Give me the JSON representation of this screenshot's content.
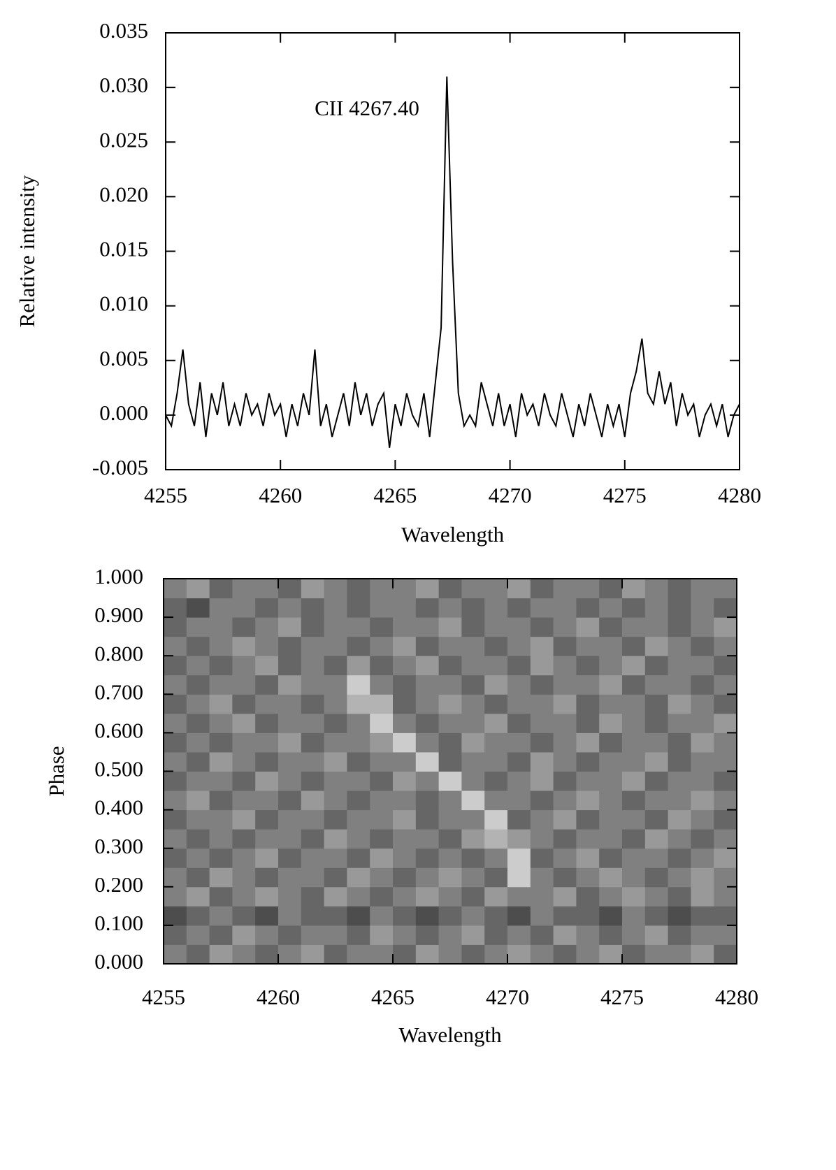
{
  "chart_data": [
    {
      "type": "line",
      "xlabel": "Wavelength",
      "ylabel": "Relative intensity",
      "annotations": [
        "CII 4267.40"
      ],
      "color": "#000000",
      "x": [
        4255,
        4255.25,
        4255.5,
        4255.75,
        4256,
        4256.25,
        4256.5,
        4256.75,
        4257,
        4257.25,
        4257.5,
        4257.75,
        4258,
        4258.25,
        4258.5,
        4258.75,
        4259,
        4259.25,
        4259.5,
        4259.75,
        4260,
        4260.25,
        4260.5,
        4260.75,
        4261,
        4261.25,
        4261.5,
        4261.75,
        4262,
        4262.25,
        4262.5,
        4262.75,
        4263,
        4263.25,
        4263.5,
        4263.75,
        4264,
        4264.25,
        4264.5,
        4264.75,
        4265,
        4265.25,
        4265.5,
        4265.75,
        4266,
        4266.25,
        4266.5,
        4266.75,
        4267,
        4267.25,
        4267.5,
        4267.75,
        4268,
        4268.25,
        4268.5,
        4268.75,
        4269,
        4269.25,
        4269.5,
        4269.75,
        4270,
        4270.25,
        4270.5,
        4270.75,
        4271,
        4271.25,
        4271.5,
        4271.75,
        4272,
        4272.25,
        4272.5,
        4272.75,
        4273,
        4273.25,
        4273.5,
        4273.75,
        4274,
        4274.25,
        4274.5,
        4274.75,
        4275,
        4275.25,
        4275.5,
        4275.75,
        4276,
        4276.25,
        4276.5,
        4276.75,
        4277,
        4277.25,
        4277.5,
        4277.75,
        4278,
        4278.25,
        4278.5,
        4278.75,
        4279,
        4279.25,
        4279.5,
        4279.75,
        4280
      ],
      "values": [
        0.0,
        -0.001,
        0.002,
        0.006,
        0.001,
        -0.001,
        0.003,
        -0.002,
        0.002,
        0.0,
        0.003,
        -0.001,
        0.001,
        -0.001,
        0.002,
        0.0,
        0.001,
        -0.001,
        0.002,
        0.0,
        0.001,
        -0.002,
        0.001,
        -0.001,
        0.002,
        0.0,
        0.006,
        -0.001,
        0.001,
        -0.002,
        0.0,
        0.002,
        -0.001,
        0.003,
        0.0,
        0.002,
        -0.001,
        0.001,
        0.002,
        -0.003,
        0.001,
        -0.001,
        0.002,
        0.0,
        -0.001,
        0.002,
        -0.002,
        0.003,
        0.008,
        0.031,
        0.014,
        0.002,
        -0.001,
        0.0,
        -0.001,
        0.003,
        0.001,
        -0.001,
        0.002,
        -0.001,
        0.001,
        -0.002,
        0.002,
        0.0,
        0.001,
        -0.001,
        0.002,
        0.0,
        -0.001,
        0.002,
        0.0,
        -0.002,
        0.001,
        -0.001,
        0.002,
        0.0,
        -0.002,
        0.001,
        -0.001,
        0.001,
        -0.002,
        0.002,
        0.004,
        0.007,
        0.002,
        0.001,
        0.004,
        0.001,
        0.003,
        -0.001,
        0.002,
        0.0,
        0.001,
        -0.002,
        0.0,
        0.001,
        -0.001,
        0.001,
        -0.002,
        0.0,
        0.001
      ],
      "xlim": [
        4255,
        4280
      ],
      "xticks": [
        4255,
        4260,
        4265,
        4270,
        4275,
        4280
      ],
      "ylim": [
        -0.005,
        0.035
      ],
      "yticks": [
        {
          "value": -0.005,
          "label": "-0.005"
        },
        {
          "value": 0,
          "label": "0.000"
        },
        {
          "value": 0.005,
          "label": "0.005"
        },
        {
          "value": 0.01,
          "label": "0.010"
        },
        {
          "value": 0.015,
          "label": "0.015"
        },
        {
          "value": 0.02,
          "label": "0.020"
        },
        {
          "value": 0.025,
          "label": "0.025"
        },
        {
          "value": 0.03,
          "label": "0.030"
        },
        {
          "value": 0.035,
          "label": "0.035"
        }
      ]
    },
    {
      "type": "heatmap",
      "xlabel": "Wavelength",
      "ylabel": "Phase",
      "x": [
        4255.5,
        4256.5,
        4257.5,
        4258.5,
        4259.5,
        4260.5,
        4261.5,
        4262.5,
        4263.5,
        4264.5,
        4265.5,
        4266.5,
        4267.5,
        4268.5,
        4269.5,
        4270.5,
        4271.5,
        4272.5,
        4273.5,
        4274.5,
        4275.5,
        4276.5,
        4277.5,
        4278.5,
        4279.5
      ],
      "y": [
        0.025,
        0.075,
        0.125,
        0.175,
        0.225,
        0.275,
        0.325,
        0.375,
        0.425,
        0.475,
        0.525,
        0.575,
        0.625,
        0.675,
        0.725,
        0.775,
        0.825,
        0.875,
        0.925,
        0.975
      ],
      "z": [
        [
          0.5,
          0.4,
          0.6,
          0.5,
          0.4,
          0.5,
          0.6,
          0.4,
          0.5,
          0.5,
          0.4,
          0.6,
          0.5,
          0.4,
          0.5,
          0.6,
          0.5,
          0.4,
          0.5,
          0.6,
          0.4,
          0.5,
          0.5,
          0.6,
          0.4
        ],
        [
          0.4,
          0.5,
          0.4,
          0.6,
          0.5,
          0.4,
          0.5,
          0.5,
          0.4,
          0.6,
          0.5,
          0.4,
          0.5,
          0.6,
          0.4,
          0.5,
          0.4,
          0.6,
          0.5,
          0.4,
          0.5,
          0.6,
          0.4,
          0.5,
          0.5
        ],
        [
          0.3,
          0.4,
          0.5,
          0.4,
          0.3,
          0.5,
          0.4,
          0.4,
          0.3,
          0.5,
          0.4,
          0.3,
          0.4,
          0.5,
          0.4,
          0.3,
          0.5,
          0.4,
          0.4,
          0.3,
          0.5,
          0.4,
          0.3,
          0.4,
          0.4
        ],
        [
          0.5,
          0.6,
          0.4,
          0.5,
          0.6,
          0.5,
          0.4,
          0.6,
          0.5,
          0.4,
          0.5,
          0.6,
          0.5,
          0.4,
          0.6,
          0.5,
          0.5,
          0.6,
          0.4,
          0.5,
          0.6,
          0.5,
          0.4,
          0.6,
          0.5
        ],
        [
          0.5,
          0.4,
          0.6,
          0.5,
          0.4,
          0.5,
          0.5,
          0.4,
          0.6,
          0.5,
          0.4,
          0.5,
          0.6,
          0.5,
          0.4,
          0.8,
          0.5,
          0.4,
          0.5,
          0.6,
          0.5,
          0.4,
          0.5,
          0.6,
          0.5
        ],
        [
          0.4,
          0.5,
          0.4,
          0.5,
          0.6,
          0.4,
          0.5,
          0.5,
          0.4,
          0.6,
          0.5,
          0.4,
          0.5,
          0.4,
          0.5,
          0.8,
          0.4,
          0.5,
          0.6,
          0.4,
          0.5,
          0.5,
          0.4,
          0.5,
          0.6
        ],
        [
          0.5,
          0.4,
          0.5,
          0.4,
          0.5,
          0.5,
          0.4,
          0.6,
          0.5,
          0.4,
          0.5,
          0.5,
          0.4,
          0.6,
          0.7,
          0.6,
          0.5,
          0.4,
          0.5,
          0.5,
          0.4,
          0.6,
          0.5,
          0.4,
          0.5
        ],
        [
          0.4,
          0.5,
          0.5,
          0.6,
          0.4,
          0.5,
          0.5,
          0.4,
          0.5,
          0.5,
          0.6,
          0.4,
          0.5,
          0.5,
          0.8,
          0.4,
          0.5,
          0.6,
          0.4,
          0.5,
          0.5,
          0.4,
          0.6,
          0.5,
          0.4
        ],
        [
          0.5,
          0.6,
          0.4,
          0.5,
          0.5,
          0.4,
          0.6,
          0.5,
          0.4,
          0.5,
          0.5,
          0.4,
          0.5,
          0.8,
          0.5,
          0.5,
          0.4,
          0.5,
          0.6,
          0.5,
          0.4,
          0.5,
          0.5,
          0.6,
          0.5
        ],
        [
          0.4,
          0.5,
          0.5,
          0.4,
          0.6,
          0.5,
          0.4,
          0.5,
          0.5,
          0.4,
          0.6,
          0.5,
          0.8,
          0.5,
          0.4,
          0.5,
          0.6,
          0.4,
          0.5,
          0.5,
          0.6,
          0.4,
          0.5,
          0.5,
          0.4
        ],
        [
          0.5,
          0.4,
          0.6,
          0.5,
          0.4,
          0.5,
          0.5,
          0.6,
          0.4,
          0.5,
          0.5,
          0.8,
          0.4,
          0.5,
          0.5,
          0.4,
          0.6,
          0.5,
          0.4,
          0.5,
          0.5,
          0.6,
          0.4,
          0.5,
          0.5
        ],
        [
          0.4,
          0.5,
          0.4,
          0.5,
          0.5,
          0.6,
          0.4,
          0.5,
          0.5,
          0.6,
          0.8,
          0.5,
          0.4,
          0.6,
          0.5,
          0.5,
          0.4,
          0.5,
          0.6,
          0.4,
          0.5,
          0.5,
          0.4,
          0.6,
          0.5
        ],
        [
          0.5,
          0.4,
          0.5,
          0.6,
          0.4,
          0.5,
          0.5,
          0.4,
          0.5,
          0.8,
          0.5,
          0.4,
          0.5,
          0.5,
          0.6,
          0.4,
          0.5,
          0.5,
          0.4,
          0.6,
          0.5,
          0.4,
          0.5,
          0.5,
          0.6
        ],
        [
          0.4,
          0.5,
          0.6,
          0.4,
          0.5,
          0.5,
          0.4,
          0.5,
          0.7,
          0.7,
          0.4,
          0.5,
          0.6,
          0.5,
          0.4,
          0.5,
          0.5,
          0.6,
          0.4,
          0.5,
          0.5,
          0.4,
          0.6,
          0.5,
          0.4
        ],
        [
          0.5,
          0.4,
          0.5,
          0.5,
          0.4,
          0.6,
          0.5,
          0.5,
          0.8,
          0.5,
          0.4,
          0.5,
          0.5,
          0.4,
          0.6,
          0.5,
          0.4,
          0.5,
          0.5,
          0.6,
          0.4,
          0.5,
          0.5,
          0.4,
          0.5
        ],
        [
          0.4,
          0.5,
          0.4,
          0.5,
          0.6,
          0.4,
          0.5,
          0.4,
          0.6,
          0.4,
          0.5,
          0.6,
          0.4,
          0.5,
          0.5,
          0.4,
          0.6,
          0.5,
          0.4,
          0.5,
          0.6,
          0.4,
          0.5,
          0.5,
          0.4
        ],
        [
          0.5,
          0.4,
          0.5,
          0.6,
          0.5,
          0.4,
          0.5,
          0.5,
          0.4,
          0.5,
          0.6,
          0.4,
          0.5,
          0.5,
          0.4,
          0.5,
          0.6,
          0.4,
          0.5,
          0.5,
          0.4,
          0.6,
          0.5,
          0.4,
          0.5
        ],
        [
          0.4,
          0.5,
          0.5,
          0.4,
          0.5,
          0.6,
          0.4,
          0.5,
          0.5,
          0.4,
          0.5,
          0.5,
          0.6,
          0.4,
          0.5,
          0.5,
          0.4,
          0.5,
          0.6,
          0.4,
          0.5,
          0.5,
          0.4,
          0.5,
          0.6
        ],
        [
          0.4,
          0.3,
          0.5,
          0.5,
          0.4,
          0.5,
          0.4,
          0.5,
          0.4,
          0.5,
          0.5,
          0.4,
          0.5,
          0.4,
          0.5,
          0.4,
          0.5,
          0.5,
          0.4,
          0.5,
          0.4,
          0.5,
          0.4,
          0.5,
          0.4
        ],
        [
          0.5,
          0.6,
          0.4,
          0.5,
          0.5,
          0.4,
          0.6,
          0.5,
          0.4,
          0.5,
          0.5,
          0.6,
          0.4,
          0.5,
          0.5,
          0.6,
          0.4,
          0.5,
          0.5,
          0.4,
          0.6,
          0.5,
          0.4,
          0.5,
          0.5
        ]
      ],
      "xlim": [
        4255,
        4280
      ],
      "xticks": [
        4255,
        4260,
        4265,
        4270,
        4275,
        4280
      ],
      "ylim": [
        0,
        1
      ],
      "yticks": [
        {
          "value": 0,
          "label": "0.000"
        },
        {
          "value": 0.1,
          "label": "0.100"
        },
        {
          "value": 0.2,
          "label": "0.200"
        },
        {
          "value": 0.3,
          "label": "0.300"
        },
        {
          "value": 0.4,
          "label": "0.400"
        },
        {
          "value": 0.5,
          "label": "0.500"
        },
        {
          "value": 0.6,
          "label": "0.600"
        },
        {
          "value": 0.7,
          "label": "0.700"
        },
        {
          "value": 0.8,
          "label": "0.800"
        },
        {
          "value": 0.9,
          "label": "0.900"
        },
        {
          "value": 1,
          "label": "1.000"
        }
      ]
    }
  ]
}
